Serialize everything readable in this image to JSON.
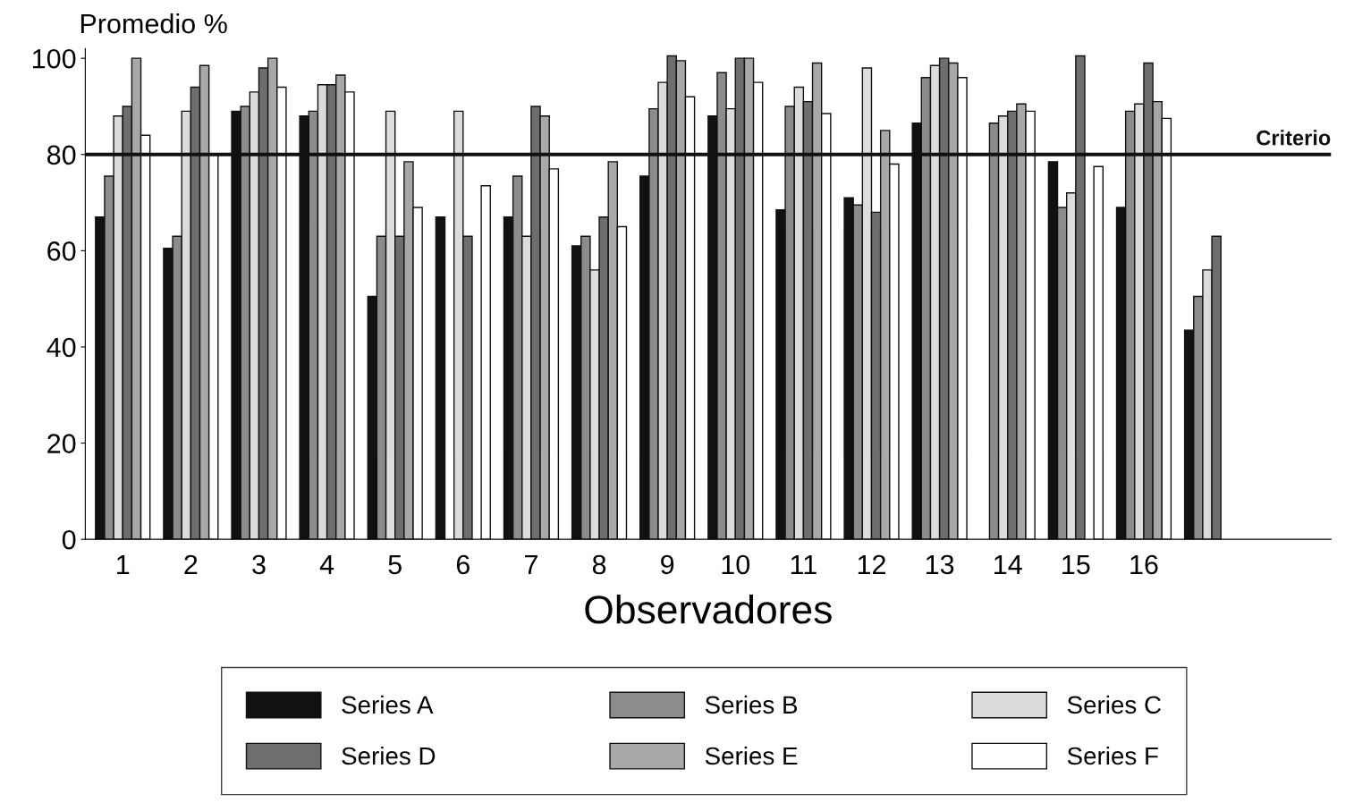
{
  "chart_data": {
    "type": "bar",
    "xlabel": "Observadores",
    "ylabel": "Promedio %",
    "categories": [
      "1",
      "2",
      "3",
      "4",
      "5",
      "6",
      "7",
      "8",
      "9",
      "10",
      "11",
      "12",
      "13",
      "14",
      "15",
      "16",
      null
    ],
    "series": [
      {
        "name": "Series A",
        "color": "#111111",
        "values": [
          67,
          60.5,
          89,
          88,
          50.5,
          67,
          67,
          61,
          75.5,
          88,
          68.5,
          71,
          86.5,
          null,
          78.5,
          69,
          43.5
        ]
      },
      {
        "name": "Series B",
        "color": "#8c8c8c",
        "values": [
          75.5,
          63,
          90,
          89,
          63,
          null,
          75.5,
          63,
          89.5,
          97,
          90,
          69.5,
          96,
          86.5,
          69,
          89,
          50.5
        ]
      },
      {
        "name": "Series C",
        "color": "#dcdcdc",
        "values": [
          88,
          89,
          93,
          94.5,
          89,
          89,
          63,
          56,
          95,
          89.5,
          94,
          98,
          98.5,
          88,
          72,
          90.5,
          56
        ]
      },
      {
        "name": "Series D",
        "color": "#6e6e6e",
        "values": [
          90,
          94,
          98,
          94.5,
          63,
          63,
          90,
          67,
          100.5,
          100,
          91,
          68,
          100,
          89,
          100.5,
          99,
          63
        ]
      },
      {
        "name": "Series E",
        "color": "#a8a8a8",
        "values": [
          100,
          98.5,
          100,
          96.5,
          78.5,
          null,
          88,
          78.5,
          99.5,
          100,
          99,
          85,
          99,
          90.5,
          null,
          91,
          null
        ]
      },
      {
        "name": "Series F",
        "color": "#ffffff",
        "values": [
          84,
          80,
          94,
          93,
          69,
          73.5,
          77,
          65,
          92,
          95,
          88.5,
          78,
          96,
          89,
          77.5,
          87.5,
          null
        ]
      }
    ],
    "ylim": [
      0,
      102
    ],
    "yticks": [
      0,
      20,
      40,
      60,
      80,
      100
    ],
    "ref_lines": [
      {
        "axis": "y",
        "value": 80,
        "label": "Criterio",
        "color": "#111111",
        "line_style": "solid"
      }
    ],
    "grid": false,
    "legend": "bottom"
  }
}
